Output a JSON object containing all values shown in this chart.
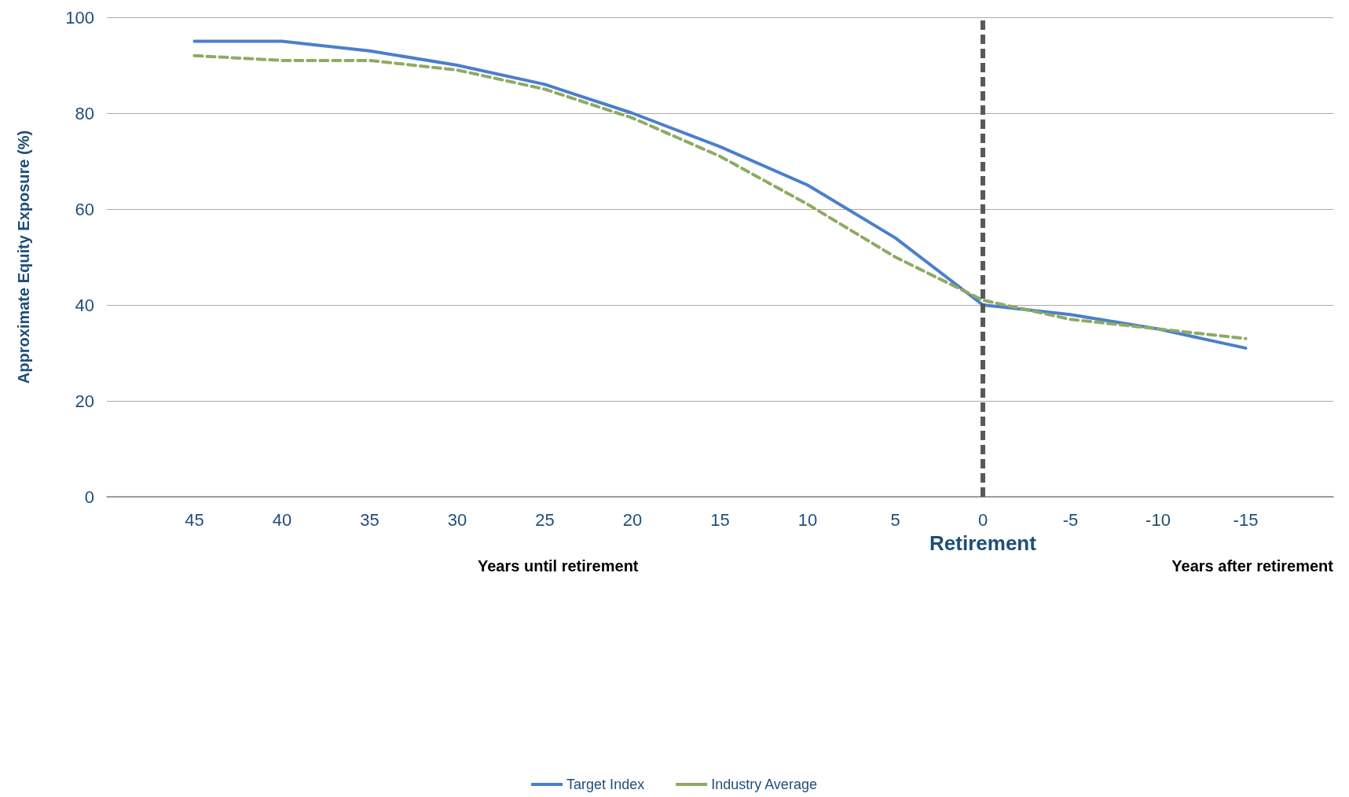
{
  "chart_data": {
    "type": "line",
    "ylabel": "Approximate Equity Exposure (%)",
    "x": [
      45,
      40,
      35,
      30,
      25,
      20,
      15,
      10,
      5,
      0,
      -5,
      -10,
      -15
    ],
    "xlim": [
      50,
      -20
    ],
    "xticks": [
      45,
      40,
      35,
      30,
      25,
      20,
      15,
      10,
      5,
      0,
      -5,
      -10,
      -15
    ],
    "ylim": [
      0,
      100
    ],
    "yticks": [
      0,
      20,
      40,
      60,
      80,
      100
    ],
    "series": [
      {
        "name": "Target Index",
        "color": "#4a7fcb",
        "line_style": "solid",
        "values": [
          95,
          95,
          93,
          90,
          86,
          80,
          73,
          65,
          54,
          40,
          38,
          35,
          31
        ]
      },
      {
        "name": "Industry Average",
        "color": "#8faa64",
        "line_style": "dashed",
        "values": [
          92,
          91,
          91,
          89,
          85,
          79,
          71,
          61,
          50,
          41,
          37,
          35,
          33
        ]
      }
    ],
    "ref_lines": [
      {
        "axis": "x",
        "value": 0,
        "label": "Retirement",
        "color": "#595959",
        "line_style": "dashed"
      }
    ],
    "annotations": [
      "Years until retirement",
      "Years after retirement"
    ],
    "grid": "y",
    "legend": "bottom",
    "marker": "none"
  }
}
